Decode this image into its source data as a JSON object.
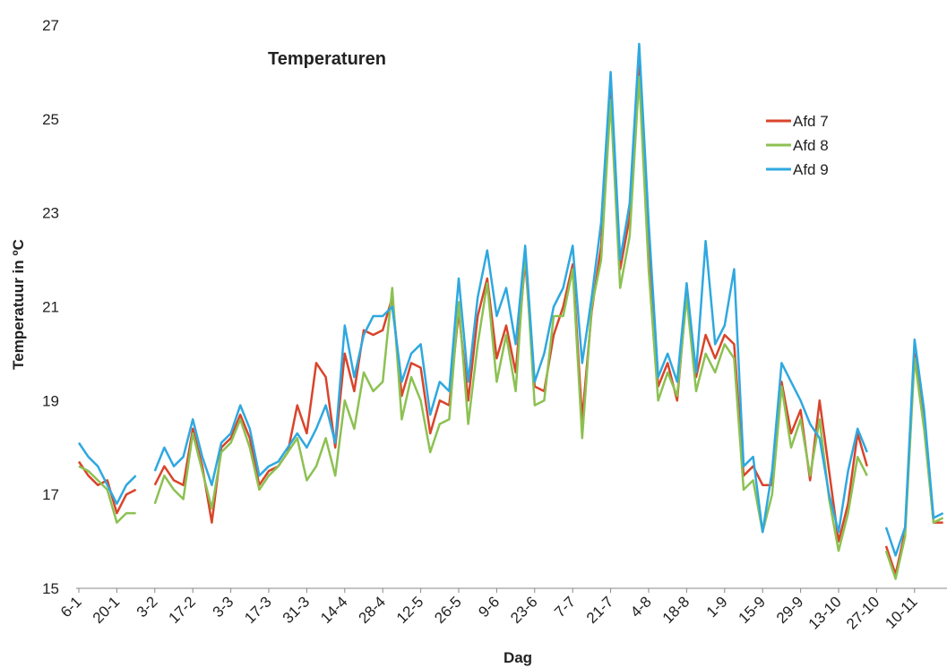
{
  "chart_data": {
    "type": "line",
    "title": "Temperaturen",
    "x_label": "Dag",
    "y_label": "Temperatuur in ºC",
    "categories": [
      "6-1",
      null,
      null,
      null,
      "20-1",
      null,
      null,
      null,
      "3-2",
      null,
      null,
      null,
      "17-2",
      null,
      null,
      null,
      "3-3",
      null,
      null,
      null,
      "17-3",
      null,
      null,
      null,
      "31-3",
      null,
      null,
      null,
      "14-4",
      null,
      null,
      null,
      "28-4",
      null,
      null,
      null,
      "12-5",
      null,
      null,
      null,
      "26-5",
      null,
      null,
      null,
      "9-6",
      null,
      null,
      null,
      "23-6",
      null,
      null,
      null,
      "7-7",
      null,
      null,
      null,
      "21-7",
      null,
      null,
      null,
      "4-8",
      null,
      null,
      null,
      "18-8",
      null,
      null,
      null,
      "1-9",
      null,
      null,
      null,
      "15-9",
      null,
      null,
      null,
      "29-9",
      null,
      null,
      null,
      "13-10",
      null,
      null,
      null,
      "27-10",
      null,
      null,
      null,
      "10-11",
      null,
      null,
      null
    ],
    "series": [
      {
        "name": "Afd 7",
        "color": "#d9442a",
        "values": [
          17.7,
          17.4,
          17.2,
          17.3,
          16.6,
          17.0,
          17.1,
          null,
          17.2,
          17.6,
          17.3,
          17.2,
          18.4,
          17.6,
          16.4,
          18.0,
          18.2,
          18.7,
          18.2,
          17.2,
          17.5,
          17.6,
          17.9,
          18.9,
          18.3,
          19.8,
          19.5,
          18.0,
          20.0,
          19.2,
          20.5,
          20.4,
          20.5,
          21.2,
          19.1,
          19.8,
          19.7,
          18.3,
          19.0,
          18.9,
          20.9,
          19.0,
          20.8,
          21.6,
          19.9,
          20.6,
          19.6,
          22.0,
          19.3,
          19.2,
          20.4,
          21.0,
          21.9,
          18.6,
          20.9,
          22.3,
          25.7,
          21.8,
          22.9,
          26.2,
          22.2,
          19.3,
          19.8,
          19.0,
          21.3,
          19.5,
          20.4,
          19.9,
          20.4,
          20.2,
          17.4,
          17.6,
          17.2,
          17.2,
          19.4,
          18.3,
          18.8,
          17.3,
          19.0,
          17.5,
          16.0,
          16.8,
          18.3,
          17.6,
          null,
          15.9,
          15.3,
          16.2,
          20.0,
          18.5,
          16.4,
          16.4
        ]
      },
      {
        "name": "Afd 8",
        "color": "#8cc152",
        "values": [
          17.6,
          17.5,
          17.3,
          17.1,
          16.4,
          16.6,
          16.6,
          null,
          16.8,
          17.4,
          17.1,
          16.9,
          18.3,
          17.5,
          16.7,
          17.9,
          18.1,
          18.6,
          18.0,
          17.1,
          17.4,
          17.6,
          17.9,
          18.2,
          17.3,
          17.6,
          18.2,
          17.4,
          19.0,
          18.4,
          19.6,
          19.2,
          19.4,
          21.4,
          18.6,
          19.5,
          19.0,
          17.9,
          18.5,
          18.6,
          21.1,
          18.5,
          20.2,
          21.5,
          19.4,
          20.4,
          19.2,
          22.2,
          18.9,
          19.0,
          20.8,
          20.8,
          21.8,
          18.2,
          21.0,
          22.0,
          25.4,
          21.4,
          22.5,
          25.9,
          21.8,
          19.0,
          19.6,
          19.1,
          21.2,
          19.2,
          20.0,
          19.6,
          20.2,
          19.9,
          17.1,
          17.3,
          16.2,
          17.0,
          19.3,
          18.0,
          18.6,
          17.4,
          18.6,
          16.9,
          15.8,
          16.6,
          17.8,
          17.4,
          null,
          15.8,
          15.2,
          16.1,
          19.9,
          18.4,
          16.4,
          16.5
        ]
      },
      {
        "name": "Afd 9",
        "color": "#2fa8e0",
        "values": [
          18.1,
          17.8,
          17.6,
          17.2,
          16.8,
          17.2,
          17.4,
          null,
          17.5,
          18.0,
          17.6,
          17.8,
          18.6,
          17.8,
          17.2,
          18.1,
          18.3,
          18.9,
          18.4,
          17.4,
          17.6,
          17.7,
          18.0,
          18.3,
          18.0,
          18.4,
          18.9,
          18.1,
          20.6,
          19.5,
          20.4,
          20.8,
          20.8,
          21.0,
          19.4,
          20.0,
          20.2,
          18.7,
          19.4,
          19.2,
          21.6,
          19.4,
          21.2,
          22.2,
          20.8,
          21.4,
          20.2,
          22.3,
          19.4,
          20.0,
          21.0,
          21.4,
          22.3,
          19.8,
          21.2,
          22.8,
          26.0,
          22.0,
          23.2,
          26.6,
          22.8,
          19.5,
          20.0,
          19.4,
          21.5,
          19.6,
          22.4,
          20.2,
          20.6,
          21.8,
          17.6,
          17.8,
          16.2,
          17.5,
          19.8,
          19.4,
          19.0,
          18.5,
          18.2,
          17.0,
          16.2,
          17.5,
          18.4,
          17.9,
          null,
          16.3,
          15.7,
          16.3,
          20.3,
          18.8,
          16.5,
          16.6
        ]
      }
    ],
    "ylim": [
      15,
      27
    ],
    "yticks": [
      15,
      17,
      19,
      21,
      23,
      25,
      27
    ],
    "grid": false,
    "legend": "top-right"
  }
}
